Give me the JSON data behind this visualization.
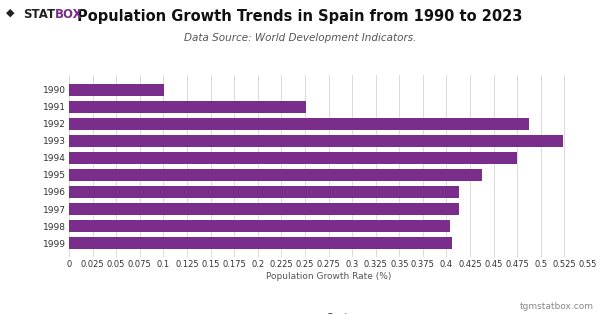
{
  "title": "Population Growth Trends in Spain from 1990 to 2023",
  "subtitle": "Data Source: World Development Indicators.",
  "xlabel": "Population Growth Rate (%)",
  "watermark": "tgmstatbox.com",
  "legend_label": "Spain",
  "bar_color": "#7B2D8B",
  "background_color": "#FFFFFF",
  "grid_color": "#CCCCCC",
  "years": [
    "1990",
    "1991",
    "1992",
    "1993",
    "1994",
    "1995",
    "1996",
    "1997",
    "1998",
    "1999"
  ],
  "values": [
    0.101,
    0.251,
    0.487,
    0.523,
    0.475,
    0.438,
    0.413,
    0.413,
    0.404,
    0.406
  ],
  "xlim": [
    0,
    0.55
  ],
  "xticks": [
    0,
    0.025,
    0.05,
    0.075,
    0.1,
    0.125,
    0.15,
    0.175,
    0.2,
    0.225,
    0.25,
    0.275,
    0.3,
    0.325,
    0.35,
    0.375,
    0.4,
    0.425,
    0.45,
    0.475,
    0.5,
    0.525,
    0.55
  ],
  "title_fontsize": 10.5,
  "subtitle_fontsize": 7.5,
  "xlabel_fontsize": 6.5,
  "tick_fontsize": 6,
  "ytick_fontsize": 6.5,
  "legend_fontsize": 7,
  "logo_stat_color": "#222222",
  "logo_box_color": "#7B2D8B",
  "title_color": "#111111",
  "subtitle_color": "#555555",
  "watermark_color": "#888888",
  "axis_text_color": "#555555"
}
